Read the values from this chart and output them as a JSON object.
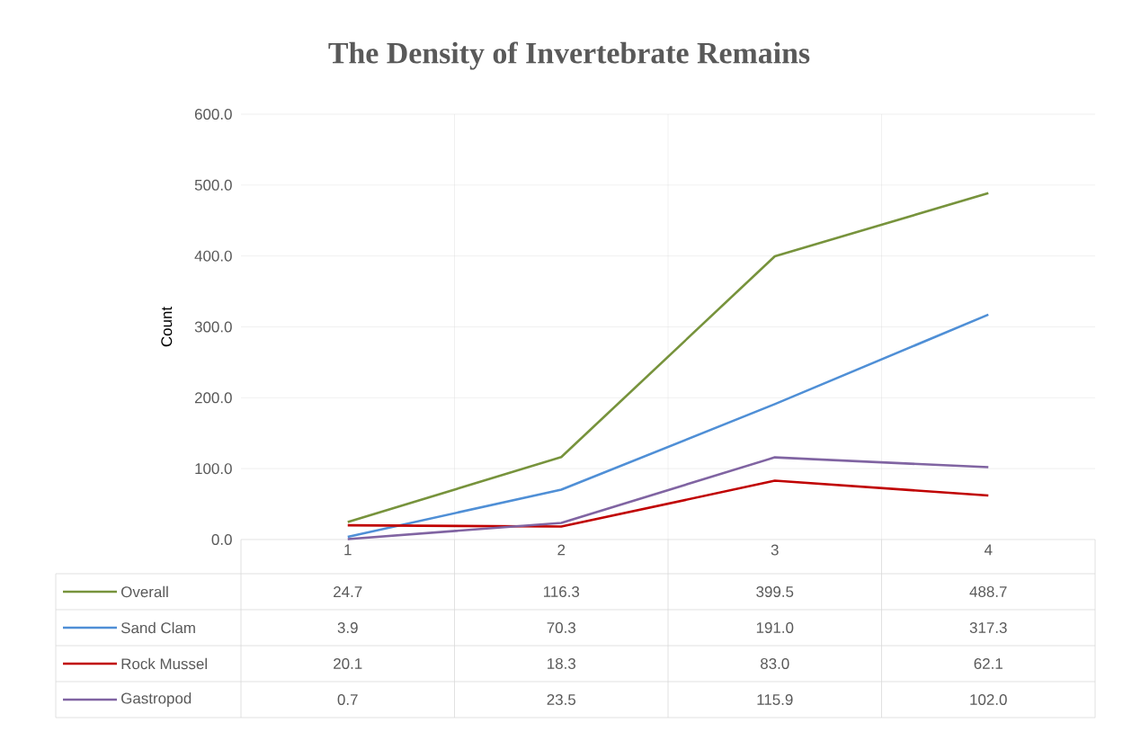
{
  "chart_data": {
    "type": "line",
    "title": "The Density of Invertebrate Remains",
    "ylabel": "Count",
    "categories": [
      "1",
      "2",
      "3",
      "4"
    ],
    "series": [
      {
        "name": "Overall",
        "color": "#77933c",
        "values": [
          24.7,
          116.3,
          399.5,
          488.7
        ],
        "value_labels": [
          "24.7",
          "116.3",
          "399.5",
          "488.7"
        ]
      },
      {
        "name": "Sand Clam",
        "color": "#4f8fd6",
        "values": [
          3.9,
          70.3,
          191.0,
          317.3
        ],
        "value_labels": [
          "3.9",
          "70.3",
          "191.0",
          "317.3"
        ]
      },
      {
        "name": "Rock Mussel",
        "color": "#c00000",
        "values": [
          20.1,
          18.3,
          83.0,
          62.1
        ],
        "value_labels": [
          "20.1",
          "18.3",
          "83.0",
          "62.1"
        ]
      },
      {
        "name": "Gastropod",
        "color": "#8064a2",
        "values": [
          0.7,
          23.5,
          115.9,
          102.0
        ],
        "value_labels": [
          "0.7",
          "23.5",
          "115.9",
          "102.0"
        ]
      }
    ],
    "legend": "bottom left",
    "ylim": [
      0,
      600
    ],
    "yticks": [
      {
        "value": 0,
        "label": "0.0"
      },
      {
        "value": 100,
        "label": "100.0"
      },
      {
        "value": 200,
        "label": "200.0"
      },
      {
        "value": 300,
        "label": "300.0"
      },
      {
        "value": 400,
        "label": "400.0"
      },
      {
        "value": 500,
        "label": "500.0"
      },
      {
        "value": 600,
        "label": "600.0"
      }
    ],
    "grid": true,
    "marker": "none",
    "line_style": "solid"
  }
}
